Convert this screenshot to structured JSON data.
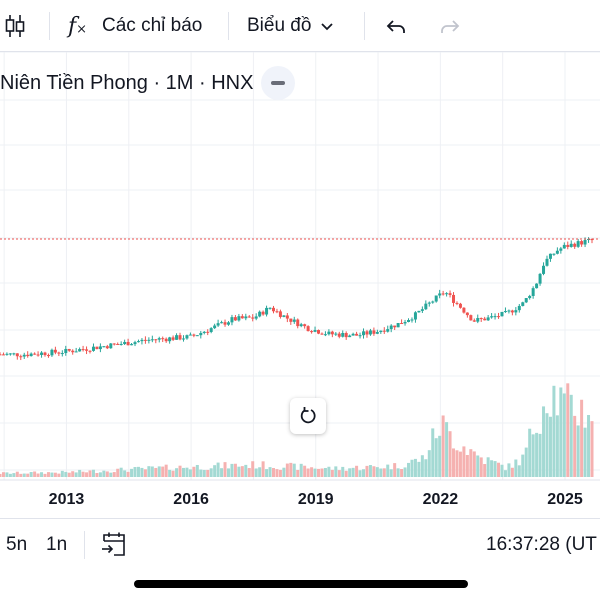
{
  "toolbar": {
    "indicators_label": "Các chỉ báo",
    "chart_type_label": "Biểu đồ"
  },
  "legend": {
    "title": "Niên Tiền Phong · 1M · HNX"
  },
  "bottom": {
    "range_5y": "5n",
    "range_1y": "1n",
    "time": "16:37:28 (UT"
  },
  "colors": {
    "up": "#26a69a",
    "down": "#ef5350",
    "vol_up": "#a3d9d3",
    "vol_down": "#f5b1b0",
    "grid": "#eef0f4",
    "last_price_line": "#ef5350"
  },
  "chart_data": {
    "type": "candlestick",
    "interval": "1M",
    "x_tick_labels": [
      "2013",
      "2016",
      "2019",
      "2022",
      "2025"
    ],
    "x_ticks": [
      2013,
      2016,
      2019,
      2022,
      2025
    ],
    "x_range": [
      2011.4,
      2025.65
    ],
    "price_range": [
      0,
      1
    ],
    "price_scale_note": "relative, no price axis visible",
    "close_anchors": [
      [
        2011.4,
        0.21
      ],
      [
        2012.0,
        0.21
      ],
      [
        2013.0,
        0.23
      ],
      [
        2014.0,
        0.27
      ],
      [
        2015.0,
        0.31
      ],
      [
        2016.0,
        0.33
      ],
      [
        2016.5,
        0.39
      ],
      [
        2017.0,
        0.45
      ],
      [
        2017.5,
        0.46
      ],
      [
        2017.9,
        0.53
      ],
      [
        2018.3,
        0.46
      ],
      [
        2018.8,
        0.39
      ],
      [
        2019.3,
        0.35
      ],
      [
        2020.0,
        0.34
      ],
      [
        2020.5,
        0.37
      ],
      [
        2021.0,
        0.42
      ],
      [
        2021.4,
        0.48
      ],
      [
        2021.7,
        0.55
      ],
      [
        2022.1,
        0.64
      ],
      [
        2022.5,
        0.53
      ],
      [
        2022.8,
        0.44
      ],
      [
        2023.2,
        0.46
      ],
      [
        2023.6,
        0.49
      ],
      [
        2024.0,
        0.56
      ],
      [
        2024.3,
        0.69
      ],
      [
        2024.5,
        0.84
      ],
      [
        2024.8,
        0.92
      ],
      [
        2025.0,
        0.95
      ],
      [
        2025.3,
        0.97
      ],
      [
        2025.6,
        0.99
      ]
    ],
    "volume_anchors": [
      [
        2011.4,
        0.04
      ],
      [
        2013.0,
        0.05
      ],
      [
        2015.5,
        0.1
      ],
      [
        2017.5,
        0.13
      ],
      [
        2019.5,
        0.09
      ],
      [
        2021.0,
        0.12
      ],
      [
        2021.6,
        0.2
      ],
      [
        2022.0,
        0.57
      ],
      [
        2022.4,
        0.38
      ],
      [
        2023.0,
        0.2
      ],
      [
        2023.6,
        0.1
      ],
      [
        2024.0,
        0.2
      ],
      [
        2024.2,
        0.47
      ],
      [
        2024.6,
        0.95
      ],
      [
        2025.0,
        0.76
      ],
      [
        2025.6,
        0.7
      ]
    ]
  }
}
